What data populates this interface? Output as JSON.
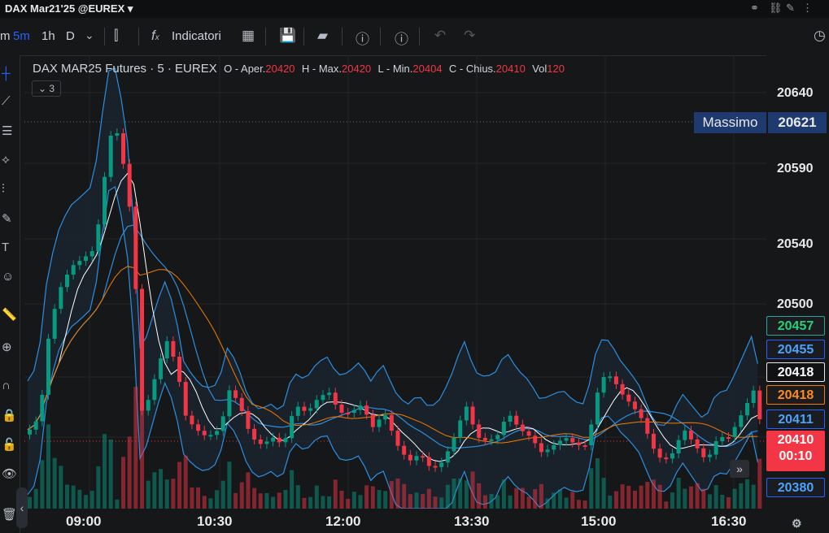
{
  "window": {
    "title": "DAX Mar21'25 @EUREX"
  },
  "toolbar": {
    "intervals": [
      "m",
      "5m",
      "1h",
      "D"
    ],
    "active_interval": "5m",
    "indicators_label": "Indicatori",
    "fx_label": "f"
  },
  "legend": {
    "symbol": "DAX MAR25 Futures · 5 · EUREX",
    "open_label": "O - Aper.",
    "open": "20420",
    "high_label": "H - Max.",
    "high": "20420",
    "low_label": "L - Min.",
    "low": "20404",
    "close_label": "C - Chius.",
    "close": "20410",
    "vol_label": "Vol",
    "vol": "120",
    "collapsed_count": "3"
  },
  "massimo": {
    "label": "Massimo",
    "value": "20621"
  },
  "price_axis": {
    "ticks": [
      "20640",
      "20590",
      "20540",
      "20500"
    ]
  },
  "price_labels": [
    {
      "value": "20457",
      "bg": "#1a1c1f",
      "border": "#26a69a",
      "fg": "#26d07c"
    },
    {
      "value": "20455",
      "bg": "#1a1c1f",
      "border": "#2962ff",
      "fg": "#4aa3ff"
    },
    {
      "value": "20418",
      "bg": "#111214",
      "border": "#e8e8e8",
      "fg": "#ffffff"
    },
    {
      "value": "20418",
      "bg": "#1a1c1f",
      "border": "#f57c00",
      "fg": "#ff8a1e"
    },
    {
      "value": "20411",
      "bg": "#1a1c1f",
      "border": "#2962ff",
      "fg": "#4aa3ff"
    },
    {
      "value": "20380",
      "bg": "#1a1c1f",
      "border": "#2962ff",
      "fg": "#4aa3ff"
    }
  ],
  "current_price": {
    "value": "20410",
    "countdown": "00:10",
    "color": "#f23645"
  },
  "time_axis": {
    "ticks": [
      "09:00",
      "10:30",
      "12:00",
      "13:30",
      "15:00",
      "16:30"
    ]
  },
  "colors": {
    "up": "#089981",
    "down": "#f23645",
    "bollinger": "#2d8fe0",
    "ma_fast": "#ffffff",
    "ma_slow": "#f57c00"
  }
}
